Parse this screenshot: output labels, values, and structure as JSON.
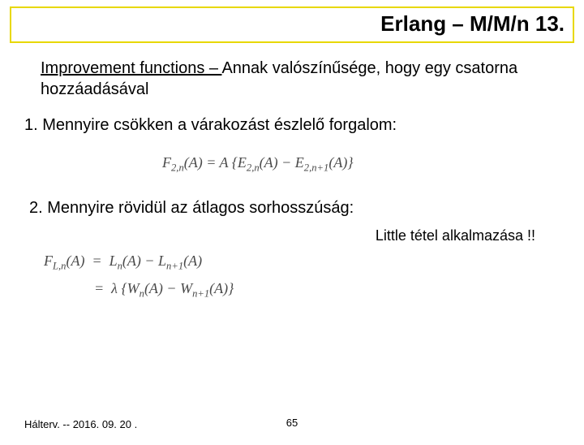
{
  "title": "Erlang – M/M/n  13.",
  "intro_underlined": "Improvement functions – ",
  "intro_rest": "Annak valószínűsége, hogy egy csatorna hozzáadásával",
  "item1": "1. Mennyire csökken a várakozást észlelő forgalom:",
  "formula1_html": "F<sub>2,n</sub>(A) = A {E<sub>2,n</sub>(A) − E<sub>2,n+1</sub>(A)}",
  "item2": "2. Mennyire rövidül az átlagos sorhosszúság:",
  "little": "Little tétel alkalmazása !!",
  "formula2_line1_html": "F<sub>L,n</sub>(A) &nbsp;=&nbsp; L<sub>n</sub>(A) − L<sub>n+1</sub>(A)",
  "formula2_line2_html": "=&nbsp; λ {W<sub>n</sub>(A) − W<sub>n+1</sub>(A)}",
  "footer": "Hálterv. -- 2016. 09. 20 .",
  "pagenum": "65",
  "colors": {
    "title_border": "#e8d800",
    "text": "#000000",
    "formula": "#4a4a4a",
    "background": "#ffffff"
  },
  "fontsizes": {
    "title": 26,
    "body": 20,
    "little": 18,
    "formula": 18,
    "footer": 13
  }
}
